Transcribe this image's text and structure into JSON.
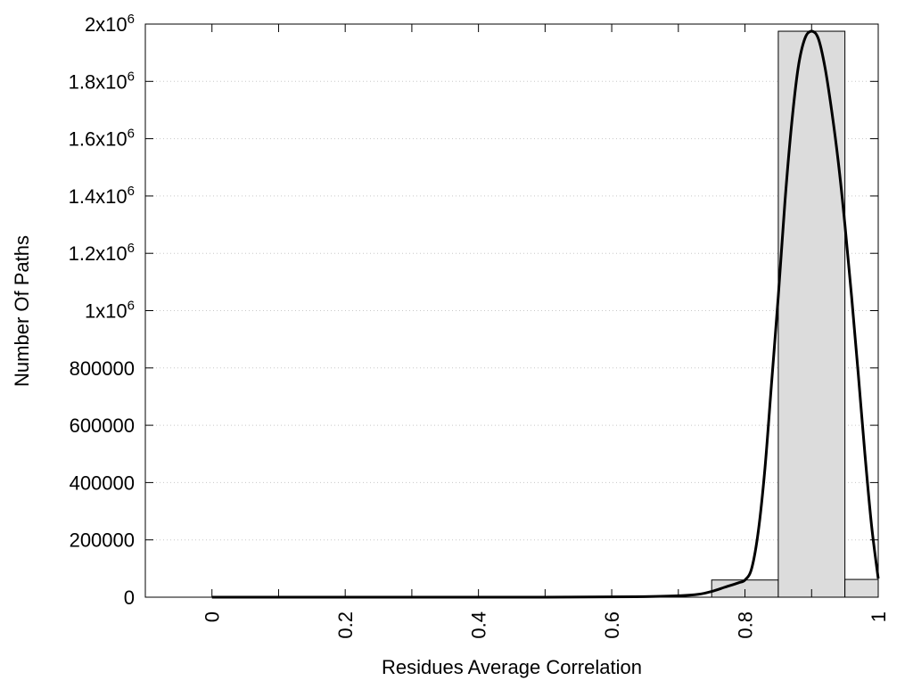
{
  "chart_data": {
    "type": "bar",
    "title": "",
    "xlabel": "Residues Average Correlation",
    "ylabel": "Number Of Paths",
    "xlim": [
      -0.1,
      1.0
    ],
    "ylim": [
      0,
      2000000
    ],
    "grid": true,
    "x_ticks": [
      {
        "value": 0,
        "label": "0"
      },
      {
        "value": 0.2,
        "label": "0.2"
      },
      {
        "value": 0.4,
        "label": "0.4"
      },
      {
        "value": 0.6,
        "label": "0.6"
      },
      {
        "value": 0.8,
        "label": "0.8"
      },
      {
        "value": 1.0,
        "label": "1"
      }
    ],
    "x_minor_ticks": [
      0.1,
      0.3,
      0.5,
      0.7,
      0.9
    ],
    "y_ticks": [
      {
        "value": 0,
        "base": "0",
        "exp": ""
      },
      {
        "value": 200000,
        "base": "200000",
        "exp": ""
      },
      {
        "value": 400000,
        "base": "400000",
        "exp": ""
      },
      {
        "value": 600000,
        "base": "600000",
        "exp": ""
      },
      {
        "value": 800000,
        "base": "800000",
        "exp": ""
      },
      {
        "value": 1000000,
        "base": "1x10",
        "exp": "6"
      },
      {
        "value": 1200000,
        "base": "1.2x10",
        "exp": "6"
      },
      {
        "value": 1400000,
        "base": "1.4x10",
        "exp": "6"
      },
      {
        "value": 1600000,
        "base": "1.6x10",
        "exp": "6"
      },
      {
        "value": 1800000,
        "base": "1.8x10",
        "exp": "6"
      },
      {
        "value": 2000000,
        "base": "2x10",
        "exp": "6"
      }
    ],
    "bars": [
      {
        "x0": 0.75,
        "x1": 0.85,
        "value": 60000
      },
      {
        "x0": 0.85,
        "x1": 0.95,
        "value": 1975000
      },
      {
        "x0": 0.95,
        "x1": 1.0,
        "value": 62000
      }
    ],
    "curve": {
      "x": [
        0.0,
        0.1,
        0.2,
        0.3,
        0.4,
        0.5,
        0.6,
        0.65,
        0.7,
        0.73,
        0.75,
        0.77,
        0.79,
        0.8,
        0.81,
        0.82,
        0.83,
        0.84,
        0.85,
        0.86,
        0.87,
        0.88,
        0.89,
        0.9,
        0.91,
        0.92,
        0.93,
        0.94,
        0.95,
        0.96,
        0.97,
        0.98,
        0.99,
        1.0
      ],
      "y": [
        0,
        0,
        0,
        0,
        0,
        0,
        1000,
        2000,
        5000,
        10000,
        20000,
        35000,
        50000,
        60000,
        100000,
        230000,
        450000,
        750000,
        1050000,
        1380000,
        1650000,
        1850000,
        1950000,
        1975000,
        1950000,
        1850000,
        1700000,
        1520000,
        1300000,
        1050000,
        780000,
        500000,
        250000,
        65000
      ]
    },
    "colors": {
      "bar_fill": "#dcdcdc",
      "bar_stroke": "#000000",
      "curve": "#000000",
      "grid": "#c8c8c8"
    }
  }
}
